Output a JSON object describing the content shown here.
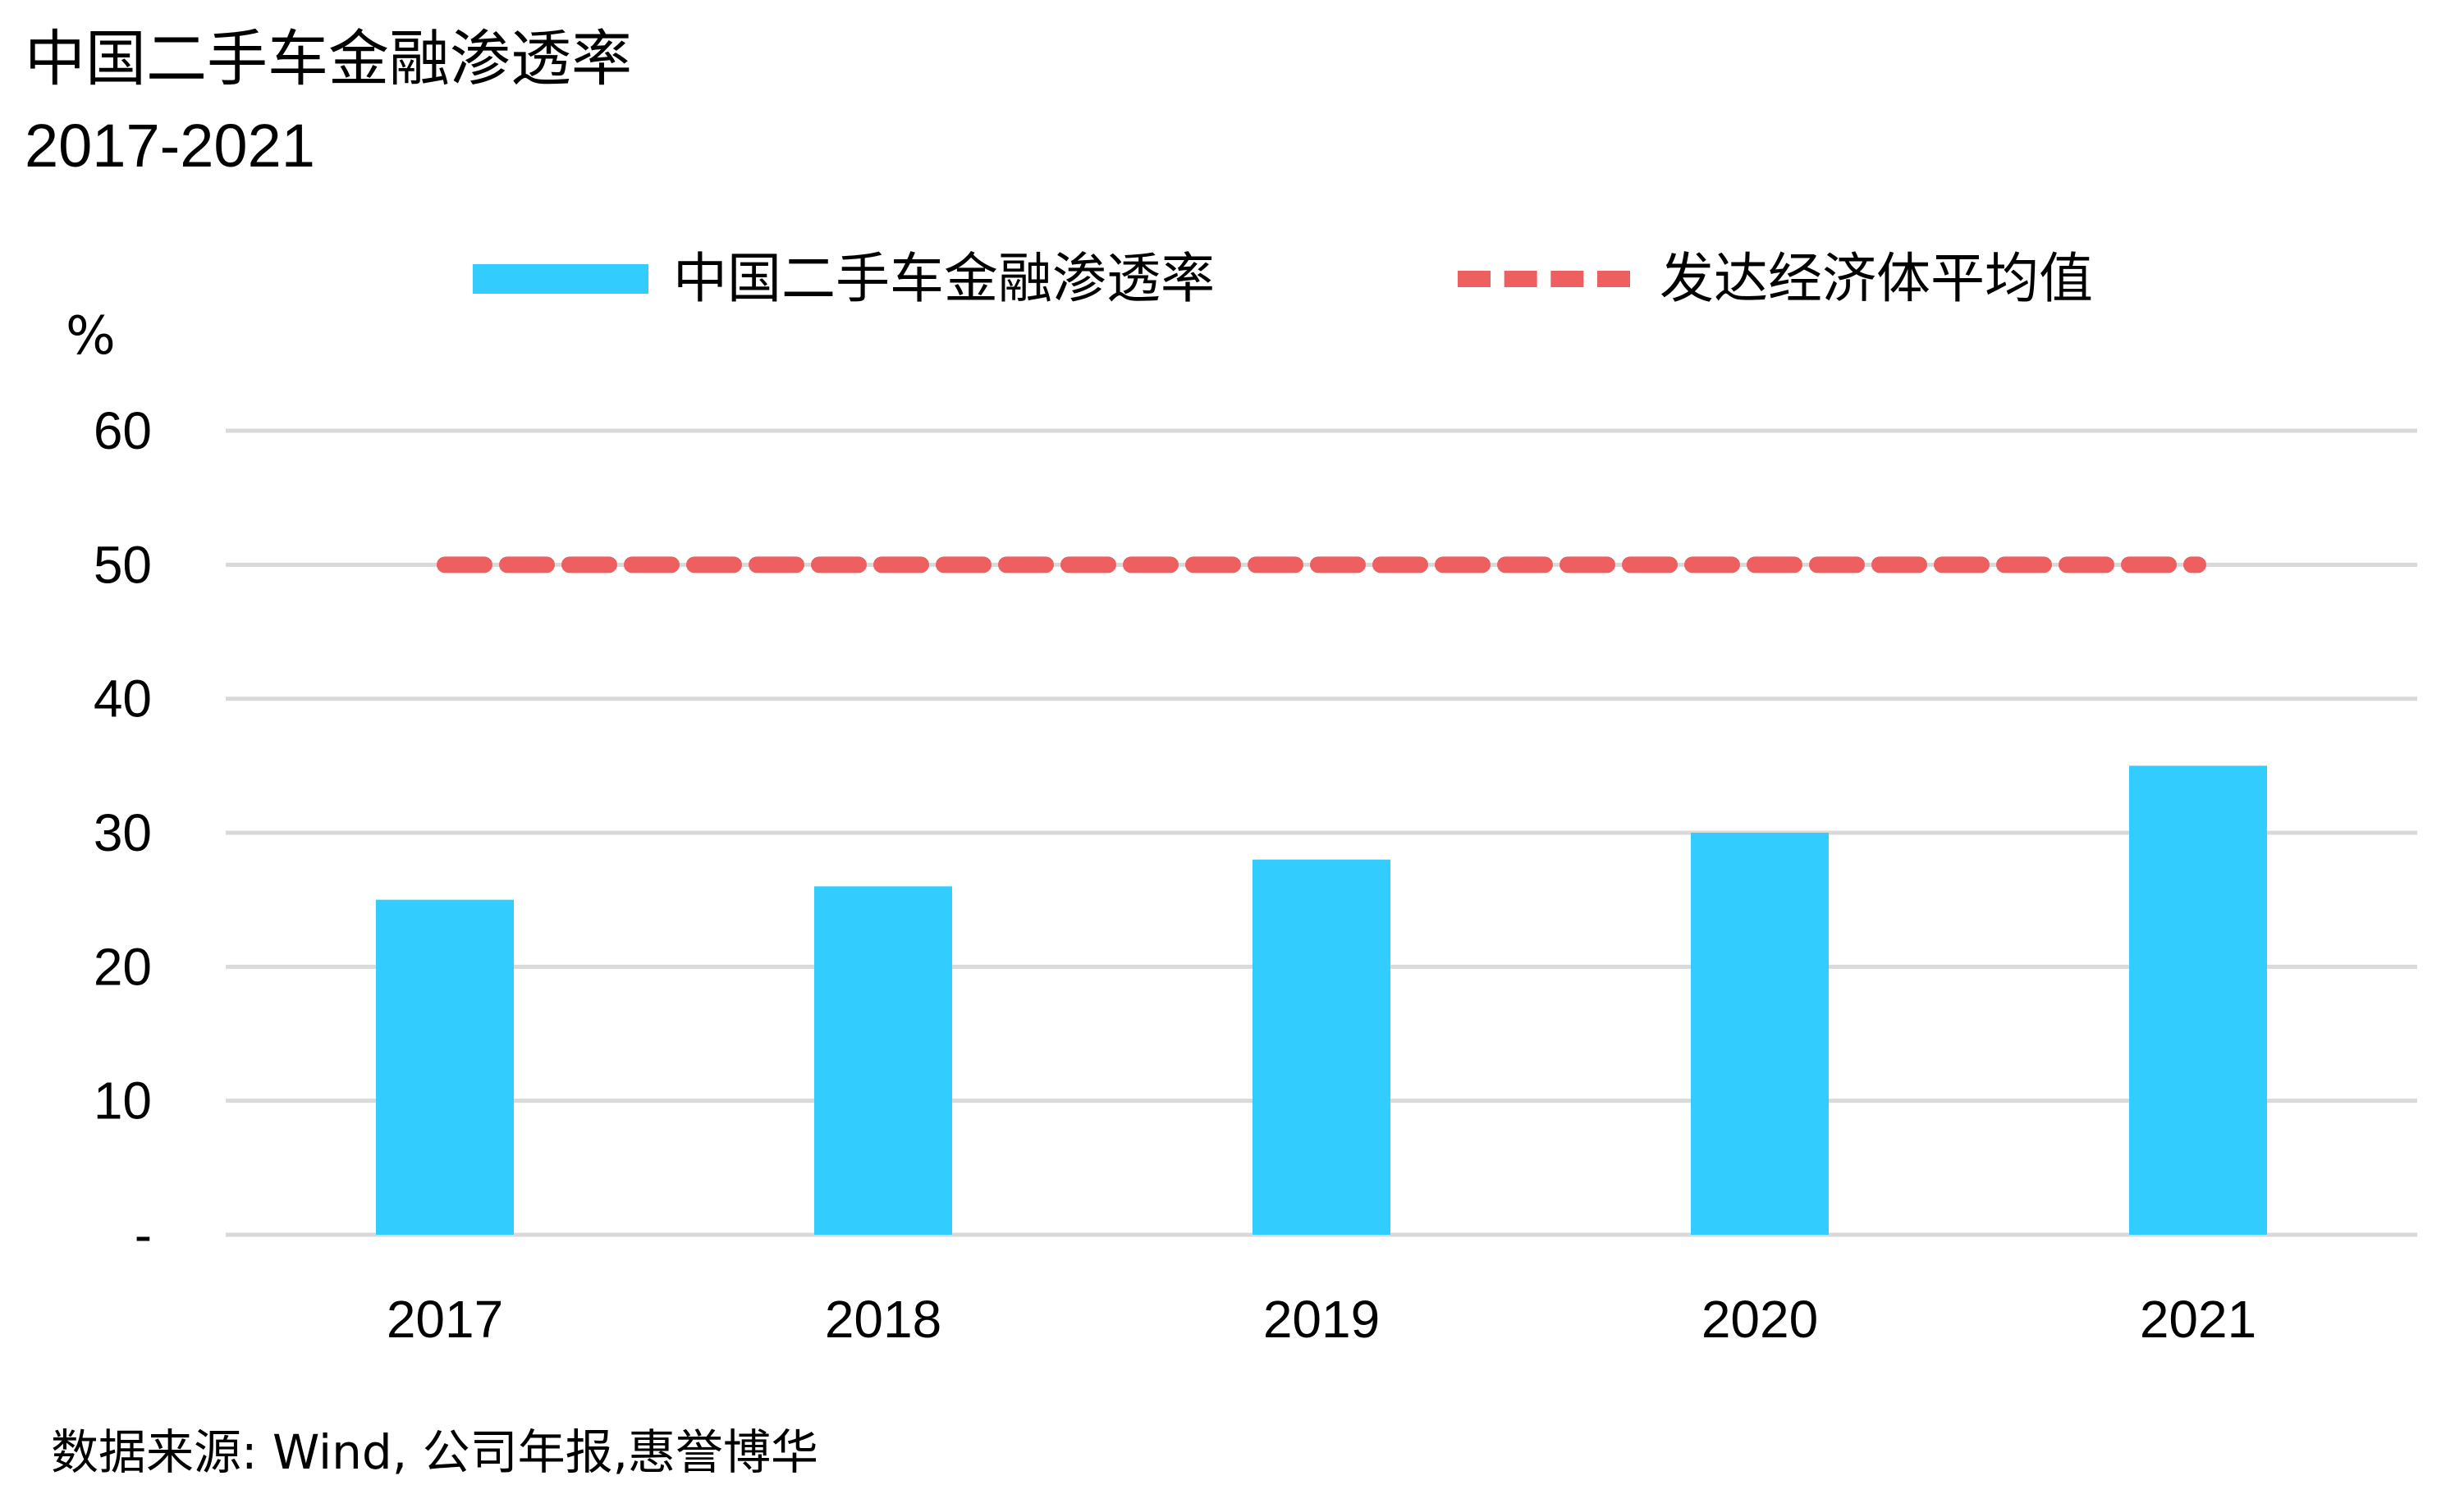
{
  "chart_data": {
    "type": "bar",
    "title": "中国二手车金融渗透率",
    "subtitle": "2017-2021",
    "ylabel": "%",
    "categories": [
      "2017",
      "2018",
      "2019",
      "2020",
      "2021"
    ],
    "series": [
      {
        "name": "中国二手车金融渗透率",
        "type": "bar",
        "values": [
          25,
          26,
          28,
          30,
          35
        ],
        "color": "#33ccff"
      },
      {
        "name": "发达经济体平均值",
        "type": "line",
        "style": "dashed",
        "values": [
          50,
          50,
          50,
          50,
          50
        ],
        "color": "#ee6060"
      }
    ],
    "ylim": [
      0,
      60
    ],
    "yticks": [
      {
        "value": 0,
        "label": "-"
      },
      {
        "value": 10,
        "label": "10"
      },
      {
        "value": 20,
        "label": "20"
      },
      {
        "value": 30,
        "label": "30"
      },
      {
        "value": 40,
        "label": "40"
      },
      {
        "value": 50,
        "label": "50"
      },
      {
        "value": 60,
        "label": "60"
      }
    ],
    "grid": true,
    "legend_position": "top",
    "source": "数据来源: Wind, 公司年报,惠誉博华"
  }
}
